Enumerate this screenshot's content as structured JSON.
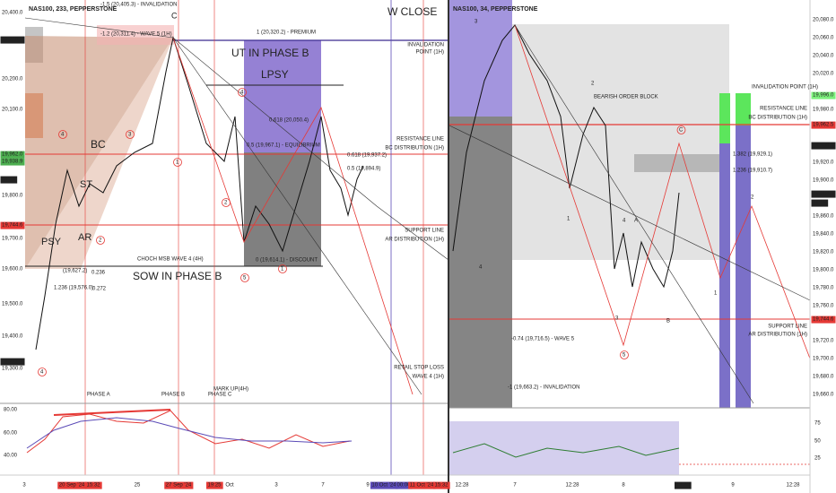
{
  "left": {
    "title": "NAS100, 233, PEPPERSTONE",
    "price_labels": [
      "20,400.0",
      "20,318.5",
      "20,200.0",
      "20,100.0",
      "19,962.0",
      "19,938.9",
      "09:19",
      "19,800.0",
      "19,744.6",
      "19,700.0",
      "19,600.0",
      "19,500.0",
      "19,400.0",
      "19,322.9",
      "19,300.0"
    ],
    "osc_labels": [
      "80.00",
      "60.00",
      "40.00"
    ],
    "annotations": [
      "-1.5 (20,405.3) - INVALIDATION",
      "-1.2 (20,311.4) - WAVE 5 (1H)",
      "C",
      "UT IN PHASE B",
      "LPSY",
      "1 (20,320.2) - PREMIUM",
      "INVALIDATION",
      "POINT (1H)",
      "W CLOSE",
      "0.618 (20,050.4)",
      "0.5 (19,967.1) - EQUILIBRIUM",
      "RESISTANCE LINE",
      "BC DISTRIBUTION (1H)",
      "0.618 (19,937.2)",
      "0.5 (19,894.9)",
      "BC",
      "ST",
      "AR",
      "PSY",
      "SUPPORT LINE",
      "AR DISTRIBUTION (1H)",
      "CHOCH MSB WAVE 4 (4H)",
      "0 (19,614.1) - DISCOUNT",
      "SOW IN PHASE B",
      "(19,627.2)",
      "0.236",
      "1.236 (19,576.0)",
      "0.272",
      "RETAIL STOP LOSS",
      "WAVE 4 (1H)",
      "MARK UP(4H)",
      "PHASE A",
      "PHASE B",
      "PHASE C"
    ],
    "wave_labels": [
      "4",
      "3",
      "2",
      "1",
      "4",
      "5",
      "2",
      "1",
      "4"
    ],
    "time_labels": [
      "3",
      "20 Sep '24",
      "15:32",
      "25",
      "27 Sep '24",
      "19:25",
      "Oct",
      "3",
      "7",
      "9",
      "10 Oct '24",
      "00:00",
      "11 Oct '24",
      "15:32"
    ]
  },
  "right": {
    "title": "NAS100, 34, PEPPERSTONE",
    "price_labels": [
      "20,080.0",
      "20,060.0",
      "20,040.0",
      "20,020.0",
      "19,996.0",
      "19,980.0",
      "19,962.5",
      "19,938.9",
      "19,920.0",
      "19,900.0",
      "19,884.9",
      "24:19",
      "19,860.0",
      "19,840.0",
      "19,820.0",
      "19,800.0",
      "19,780.0",
      "19,760.0",
      "19,744.6",
      "19,720.0",
      "19,700.0",
      "19,680.0",
      "19,660.0"
    ],
    "volume_labels": [
      "75",
      "50",
      "25"
    ],
    "annotations": [
      "BEARISH ORDER BLOCK",
      "INVALIDATION POINT (1H)",
      "RESISTANCE LINE",
      "BC DISTRIBUTION (1H)",
      "1.382 (19,929.1)",
      "1.236 (19,910.7)",
      "SUPPORT LINE",
      "AR DISTRIBUTION (1H)",
      "-0.74 (19,716.5) - WAVE 5",
      "-1 (19,663.2) - INVALIDATION"
    ],
    "wave_labels": [
      "3",
      "2",
      "1",
      "4",
      "4",
      "A",
      "3",
      "B",
      "5",
      "1",
      "2",
      "C"
    ],
    "time_labels": [
      "12:28",
      "7",
      "12:28",
      "8",
      "12:28",
      "9",
      "12:28"
    ]
  }
}
